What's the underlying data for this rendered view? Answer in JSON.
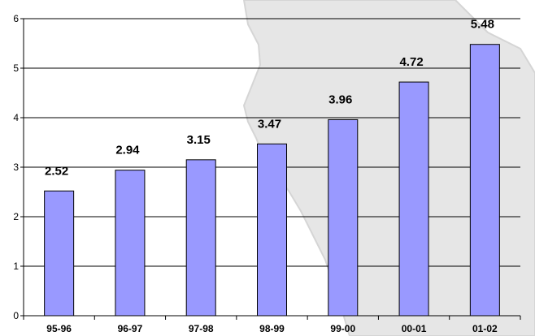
{
  "chart_data": {
    "type": "bar",
    "categories": [
      "95-96",
      "96-97",
      "97-98",
      "98-99",
      "99-00",
      "00-01",
      "01-02"
    ],
    "values": [
      2.52,
      2.94,
      3.15,
      3.47,
      3.96,
      4.72,
      5.48
    ],
    "data_labels": [
      "2.52",
      "2.94",
      "3.15",
      "3.47",
      "3.96",
      "4.72",
      "5.48"
    ],
    "yticks": [
      0,
      1,
      2,
      3,
      4,
      5,
      6
    ],
    "ytick_labels": [
      "0",
      "1",
      "2",
      "3",
      "4",
      "5",
      "6"
    ],
    "ylim": [
      0,
      6
    ],
    "grid": true,
    "legend": "none",
    "title": "",
    "xlabel": "",
    "ylabel": "",
    "colors": {
      "bar_fill": "#9999ff",
      "bar_stroke": "#000000",
      "grid": "#000000",
      "axis": "#000000",
      "background_map": "#dedede",
      "background_map_edge": "#c8c8c8"
    }
  }
}
